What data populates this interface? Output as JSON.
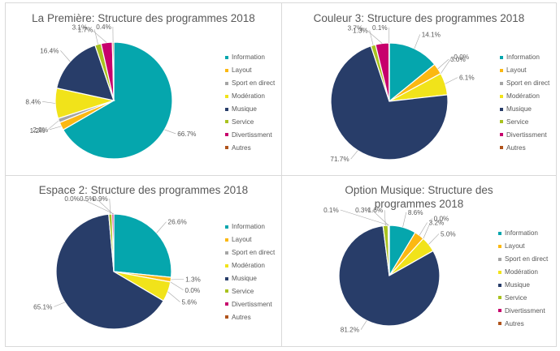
{
  "chart_data": [
    {
      "type": "pie",
      "title": "La Première: Structure des programmes 2018",
      "categories": [
        "Information",
        "Layout",
        "Sport en direct",
        "Modération",
        "Musique",
        "Service",
        "Divertissment",
        "Autres"
      ],
      "values": [
        66.7,
        2.2,
        1.2,
        8.4,
        16.4,
        1.7,
        3.1,
        0.4
      ],
      "labels": [
        "66.7%",
        "2.2%",
        "1.2%",
        "8.4%",
        "16.4%",
        "1.7%",
        "3.1%",
        "0.4%"
      ],
      "legend_position": "right"
    },
    {
      "type": "pie",
      "title": "Couleur 3: Structure des programmes 2018",
      "categories": [
        "Information",
        "Layout",
        "Sport en direct",
        "Modération",
        "Musique",
        "Service",
        "Divertissment",
        "Autres"
      ],
      "values": [
        14.1,
        3.0,
        0.0,
        6.1,
        71.7,
        1.3,
        3.7,
        0.1
      ],
      "labels": [
        "14.1%",
        "3.0%",
        "0.0%",
        "6.1%",
        "71.7%",
        "1.3%",
        "3.7%",
        "0.1%"
      ],
      "legend_position": "right"
    },
    {
      "type": "pie",
      "title": "Espace 2: Structure des programmes 2018",
      "categories": [
        "Information",
        "Layout",
        "Sport en direct",
        "Modération",
        "Musique",
        "Service",
        "Divertissment",
        "Autres"
      ],
      "values": [
        26.6,
        1.3,
        0.0,
        5.6,
        65.1,
        0.9,
        0.5,
        0.0
      ],
      "labels": [
        "26.6%",
        "1.3%",
        "0.0%",
        "5.6%",
        "65.1%",
        "0.9%",
        "0.5%",
        "0.0%"
      ],
      "legend_position": "right"
    },
    {
      "type": "pie",
      "title": "Option Musique: Structure des programmes 2018",
      "categories": [
        "Information",
        "Layout",
        "Sport en direct",
        "Modération",
        "Musique",
        "Service",
        "Divertissment",
        "Autres"
      ],
      "values": [
        8.6,
        3.2,
        0.0,
        5.0,
        81.2,
        1.6,
        0.3,
        0.1
      ],
      "labels": [
        "8.6%",
        "3.2%",
        "0.0%",
        "5.0%",
        "81.2%",
        "1.6%",
        "0.3%",
        "0.1%"
      ],
      "legend_position": "right"
    }
  ],
  "colors": {
    "Information": "#05a6ad",
    "Layout": "#fbb812",
    "Sport en direct": "#a5a5a5",
    "Modération": "#f1e31a",
    "Musique": "#283d69",
    "Service": "#a9c21f",
    "Divertissment": "#c7006c",
    "Autres": "#b0541c"
  }
}
